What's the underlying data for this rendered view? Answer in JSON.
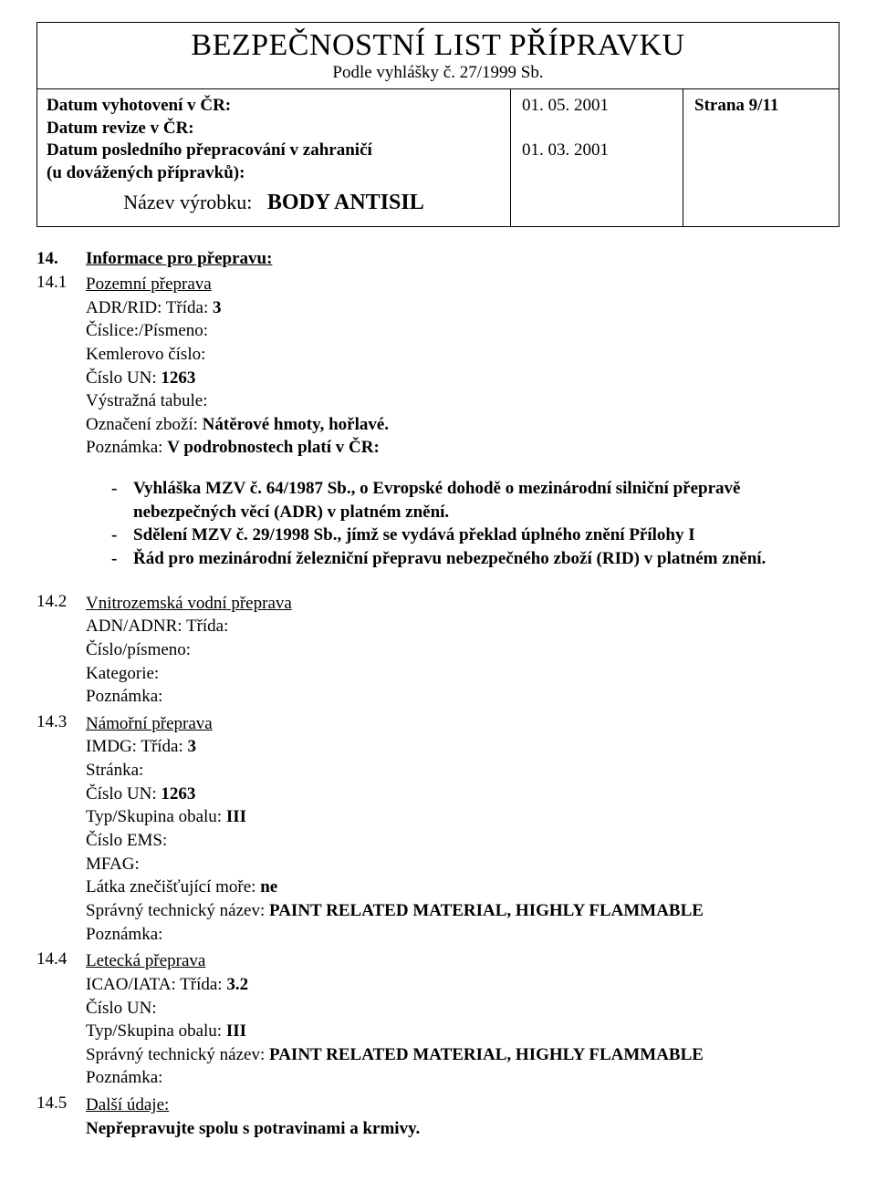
{
  "header": {
    "title": "BEZPEČNOSTNÍ LIST PŘÍPRAVKU",
    "subtitle": "Podle vyhlášky č. 27/1999 Sb.",
    "left": {
      "l1": "Datum vyhotovení v ČR:",
      "l2": "Datum revize v ČR:",
      "l3": "Datum posledního přepracování v zahraničí",
      "l4": "(u dovážených přípravků):"
    },
    "dates": {
      "d1": "01. 05. 2001",
      "d2": "01. 03. 2001"
    },
    "page": "Strana 9/11",
    "product_label": "Název výrobku:",
    "product_value": "BODY ANTISIL"
  },
  "s14": {
    "num": "14.",
    "title": "Informace pro přepravu:",
    "s1": {
      "num": "14.1",
      "title": "Pozemní přeprava",
      "l1a": "ADR/RID: Třída: ",
      "l1b": "3",
      "l2": "Číslice:/Písmeno:",
      "l3": "Kemlerovo číslo:",
      "l4a": "Číslo UN: ",
      "l4b": "1263",
      "l5": "Výstražná tabule:",
      "l6a": "Označení zboží: ",
      "l6b": "Nátěrové hmoty, hořlavé.",
      "l7a": "Poznámka: ",
      "l7b": "V podrobnostech platí v ČR:",
      "b1": "Vyhláška MZV č. 64/1987 Sb., o Evropské dohodě o mezinárodní silniční přepravě nebezpečných věcí (ADR) v platném znění.",
      "b2": "Sdělení MZV č. 29/1998 Sb., jímž se vydává překlad úplného znění Přílohy I",
      "b3": "Řád pro mezinárodní železniční přepravu nebezpečného zboží (RID) v platném znění."
    },
    "s2": {
      "num": "14.2",
      "title": "Vnitrozemská vodní přeprava",
      "l1": "ADN/ADNR: Třída:",
      "l2": "Číslo/písmeno:",
      "l3": "Kategorie:",
      "l4": "Poznámka:"
    },
    "s3": {
      "num": "14.3",
      "title": "Námořní přeprava",
      "l1a": "IMDG: Třída: ",
      "l1b": "3",
      "l2": "Stránka:",
      "l3a": "Číslo UN: ",
      "l3b": "1263",
      "l4a": "Typ/Skupina obalu: ",
      "l4b": "III",
      "l5": "Číslo EMS:",
      "l6": "MFAG:",
      "l7a": "Látka znečišťující moře: ",
      "l7b": "ne",
      "l8a": "Správný technický název: ",
      "l8b": "PAINT RELATED MATERIAL, HIGHLY FLAMMABLE",
      "l9": "Poznámka:"
    },
    "s4": {
      "num": "14.4",
      "title": "Letecká přeprava",
      "l1a": "ICAO/IATA: Třída: ",
      "l1b": "3.2",
      "l2": "Číslo UN:",
      "l3a": "Typ/Skupina obalu: ",
      "l3b": "III",
      "l4a": "Správný technický název: ",
      "l4b": "PAINT RELATED MATERIAL, HIGHLY FLAMMABLE",
      "l5": "Poznámka:"
    },
    "s5": {
      "num": "14.5",
      "title": "Další údaje:",
      "l1": "Nepřepravujte spolu s potravinami a krmivy."
    }
  }
}
